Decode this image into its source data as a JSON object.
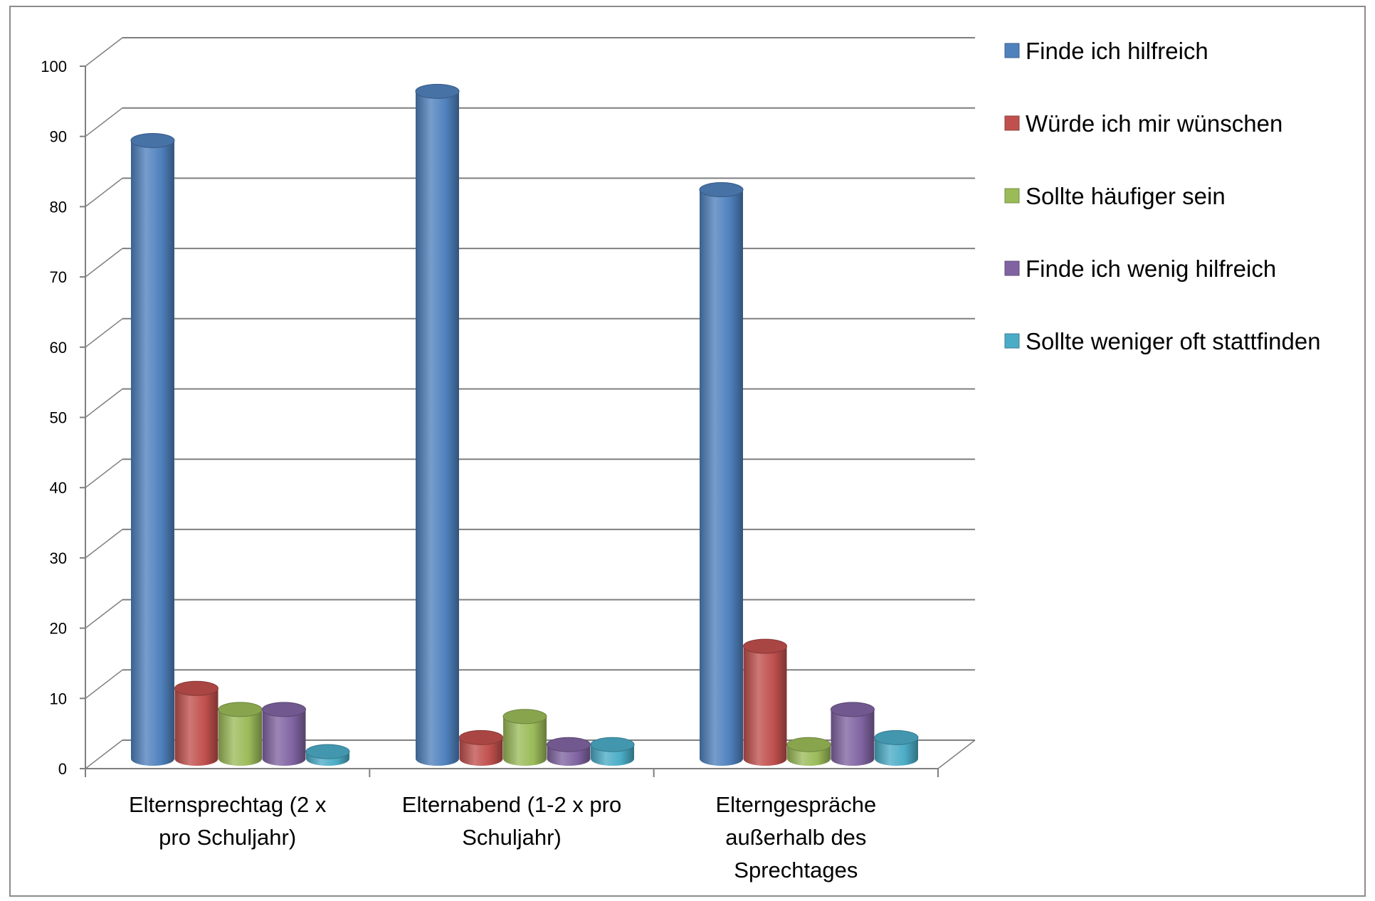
{
  "chart_data": {
    "type": "bar",
    "variant": "3d-cylinder-clustered",
    "title": "",
    "xlabel": "",
    "ylabel": "",
    "ylim": [
      0,
      100
    ],
    "y_ticks": [
      0,
      10,
      20,
      30,
      40,
      50,
      60,
      70,
      80,
      90,
      100
    ],
    "grid": true,
    "legend_position": "right",
    "categories": [
      [
        "Elternsprechtag (2 x",
        "pro Schuljahr)"
      ],
      [
        "Elternabend (1-2 x pro",
        "Schuljahr)"
      ],
      [
        "Elterngespräche",
        "außerhalb des",
        "Sprechtages"
      ]
    ],
    "series": [
      {
        "name": "Finde ich hilfreich",
        "color": "#4f81bd",
        "values": [
          88,
          95,
          81
        ]
      },
      {
        "name": "Würde ich mir wünschen",
        "color": "#c0504d",
        "values": [
          10,
          3,
          16
        ]
      },
      {
        "name": "Sollte  häufiger sein",
        "color": "#9bbb59",
        "values": [
          7,
          6,
          2
        ]
      },
      {
        "name": "Finde ich wenig hilfreich",
        "color": "#8064a2",
        "values": [
          7,
          2,
          7
        ]
      },
      {
        "name": "Sollte weniger oft stattfinden",
        "color": "#4bacc6",
        "values": [
          1,
          2,
          3
        ]
      }
    ]
  }
}
